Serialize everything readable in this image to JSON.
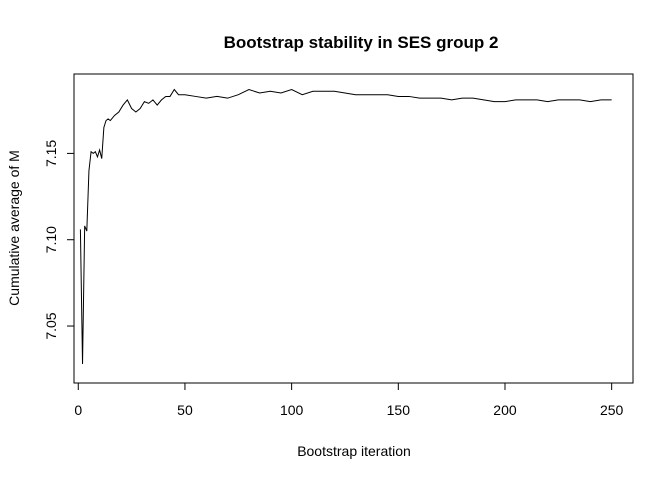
{
  "chart_data": {
    "type": "line",
    "title": "Bootstrap stability in SES group 2",
    "xlabel": "Bootstrap iteration",
    "ylabel": "Cumulative average of M",
    "xlim": [
      -2,
      260
    ],
    "ylim": [
      7.017,
      7.196
    ],
    "x_ticks": [
      0,
      50,
      100,
      150,
      200,
      250
    ],
    "y_ticks": [
      7.05,
      7.1,
      7.15
    ],
    "y_tick_labels": [
      "7.05",
      "7.10",
      "7.15"
    ],
    "grid": false,
    "series": [
      {
        "color": "#000000",
        "x": [
          1,
          2,
          3,
          4,
          5,
          6,
          7,
          8,
          9,
          10,
          11,
          12,
          13,
          14,
          15,
          17,
          19,
          21,
          23,
          25,
          27,
          29,
          31,
          33,
          35,
          37,
          39,
          41,
          43,
          45,
          47,
          50,
          55,
          60,
          65,
          70,
          75,
          80,
          85,
          90,
          95,
          100,
          105,
          110,
          115,
          120,
          125,
          130,
          135,
          140,
          145,
          150,
          155,
          160,
          165,
          170,
          175,
          180,
          185,
          190,
          195,
          200,
          205,
          210,
          215,
          220,
          225,
          230,
          235,
          240,
          245,
          250
        ],
        "values": [
          7.106,
          7.028,
          7.108,
          7.105,
          7.14,
          7.151,
          7.15,
          7.151,
          7.148,
          7.152,
          7.147,
          7.165,
          7.169,
          7.17,
          7.169,
          7.172,
          7.174,
          7.178,
          7.181,
          7.176,
          7.174,
          7.176,
          7.18,
          7.179,
          7.181,
          7.178,
          7.181,
          7.183,
          7.183,
          7.187,
          7.184,
          7.184,
          7.183,
          7.182,
          7.183,
          7.182,
          7.184,
          7.187,
          7.185,
          7.186,
          7.185,
          7.187,
          7.184,
          7.186,
          7.186,
          7.186,
          7.185,
          7.184,
          7.184,
          7.184,
          7.184,
          7.183,
          7.183,
          7.182,
          7.182,
          7.182,
          7.181,
          7.182,
          7.182,
          7.181,
          7.18,
          7.18,
          7.181,
          7.181,
          7.181,
          7.18,
          7.181,
          7.181,
          7.181,
          7.18,
          7.181,
          7.181
        ]
      }
    ]
  }
}
